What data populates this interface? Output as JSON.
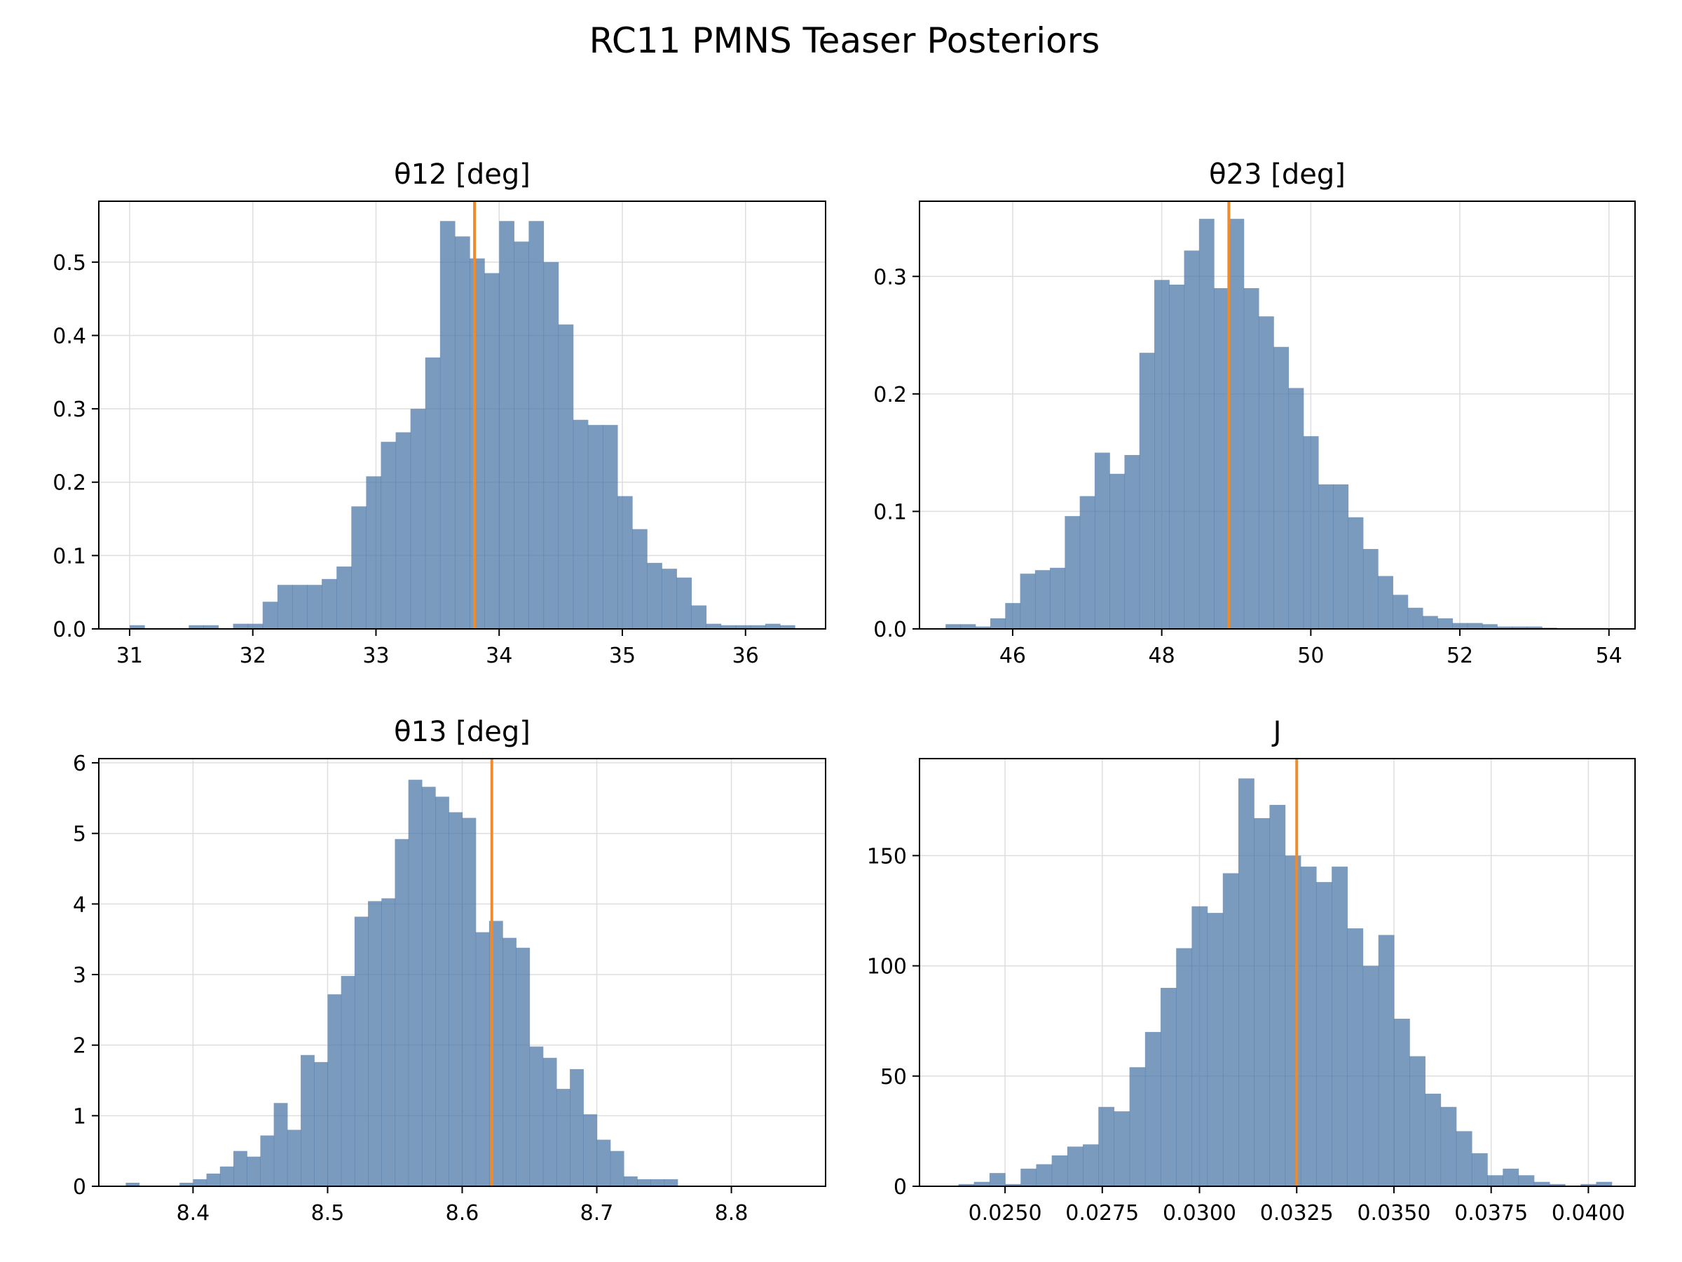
{
  "figure": {
    "title": "RC11 PMNS Teaser Posteriors"
  },
  "colors": {
    "bars": "#4f79a8",
    "marker": "#ef8b2c",
    "grid": "#dedede",
    "axis": "#000000"
  },
  "chart_data": [
    {
      "type": "bar",
      "title": "θ12 [deg]",
      "x_start": 31.0,
      "bin_width": 0.12,
      "values": [
        0.005,
        0,
        0,
        0,
        0.005,
        0.005,
        0,
        0.007,
        0.007,
        0.037,
        0.06,
        0.06,
        0.06,
        0.068,
        0.085,
        0.167,
        0.208,
        0.255,
        0.268,
        0.3,
        0.37,
        0.556,
        0.535,
        0.505,
        0.485,
        0.556,
        0.528,
        0.556,
        0.5,
        0.415,
        0.285,
        0.278,
        0.278,
        0.181,
        0.136,
        0.09,
        0.082,
        0.07,
        0.032,
        0.007,
        0.005,
        0.005,
        0.005,
        0.007,
        0.005
      ],
      "marker": 33.8,
      "xlim": [
        30.75,
        36.65
      ],
      "ylim": [
        0,
        0.583
      ],
      "xticks": [
        "31",
        "32",
        "33",
        "34",
        "35",
        "36"
      ],
      "yticks": [
        "0.0",
        "0.1",
        "0.2",
        "0.3",
        "0.4",
        "0.5"
      ],
      "grid": true
    },
    {
      "type": "bar",
      "title": "θ23 [deg]",
      "x_start": 45.1,
      "bin_width": 0.2,
      "values": [
        0.004,
        0.004,
        0.002,
        0.009,
        0.022,
        0.047,
        0.05,
        0.052,
        0.096,
        0.113,
        0.15,
        0.132,
        0.148,
        0.235,
        0.297,
        0.293,
        0.322,
        0.349,
        0.29,
        0.349,
        0.29,
        0.266,
        0.24,
        0.205,
        0.164,
        0.123,
        0.123,
        0.095,
        0.068,
        0.045,
        0.029,
        0.018,
        0.011,
        0.009,
        0.005,
        0.005,
        0.004,
        0.002,
        0.002,
        0.002,
        0.001
      ],
      "marker": 48.9,
      "xlim": [
        44.75,
        54.35
      ],
      "ylim": [
        0,
        0.364
      ],
      "xticks": [
        "46",
        "48",
        "50",
        "52",
        "54"
      ],
      "yticks": [
        "0.0",
        "0.1",
        "0.2",
        "0.3"
      ],
      "grid": true
    },
    {
      "type": "bar",
      "title": "θ13 [deg]",
      "x_start": 8.35,
      "bin_width": 0.01,
      "values": [
        0.05,
        0,
        0,
        0,
        0.05,
        0.1,
        0.18,
        0.28,
        0.5,
        0.42,
        0.72,
        1.18,
        0.8,
        1.86,
        1.76,
        2.72,
        2.98,
        3.82,
        4.04,
        4.08,
        4.92,
        5.76,
        5.66,
        5.52,
        5.3,
        5.22,
        3.6,
        3.76,
        3.52,
        3.38,
        1.98,
        1.82,
        1.38,
        1.66,
        1.02,
        0.66,
        0.5,
        0.14,
        0.1,
        0.1,
        0.1
      ],
      "marker": 8.622,
      "xlim": [
        8.33,
        8.87
      ],
      "ylim": [
        0,
        6.06
      ],
      "xticks": [
        "8.4",
        "8.5",
        "8.6",
        "8.7",
        "8.8"
      ],
      "yticks": [
        "0",
        "1",
        "2",
        "3",
        "4",
        "5",
        "6"
      ],
      "grid": true
    },
    {
      "type": "bar",
      "title": "J",
      "x_start": 0.0238,
      "bin_width": 0.0004,
      "values": [
        1,
        2,
        6,
        1,
        8,
        10,
        14,
        18,
        19,
        36,
        34,
        54,
        70,
        90,
        108,
        127,
        124,
        142,
        185,
        167,
        173,
        150,
        145,
        138,
        145,
        117,
        100,
        114,
        76,
        59,
        42,
        36,
        25,
        15,
        5,
        8,
        5,
        2,
        1,
        0,
        1,
        2
      ],
      "marker": 0.0325,
      "xlim": [
        0.0228,
        0.0412
      ],
      "ylim": [
        0,
        194
      ],
      "xticks": [
        "0.0250",
        "0.0275",
        "0.0300",
        "0.0325",
        "0.0350",
        "0.0375",
        "0.0400"
      ],
      "yticks": [
        "0",
        "50",
        "100",
        "150"
      ],
      "grid": true
    }
  ]
}
